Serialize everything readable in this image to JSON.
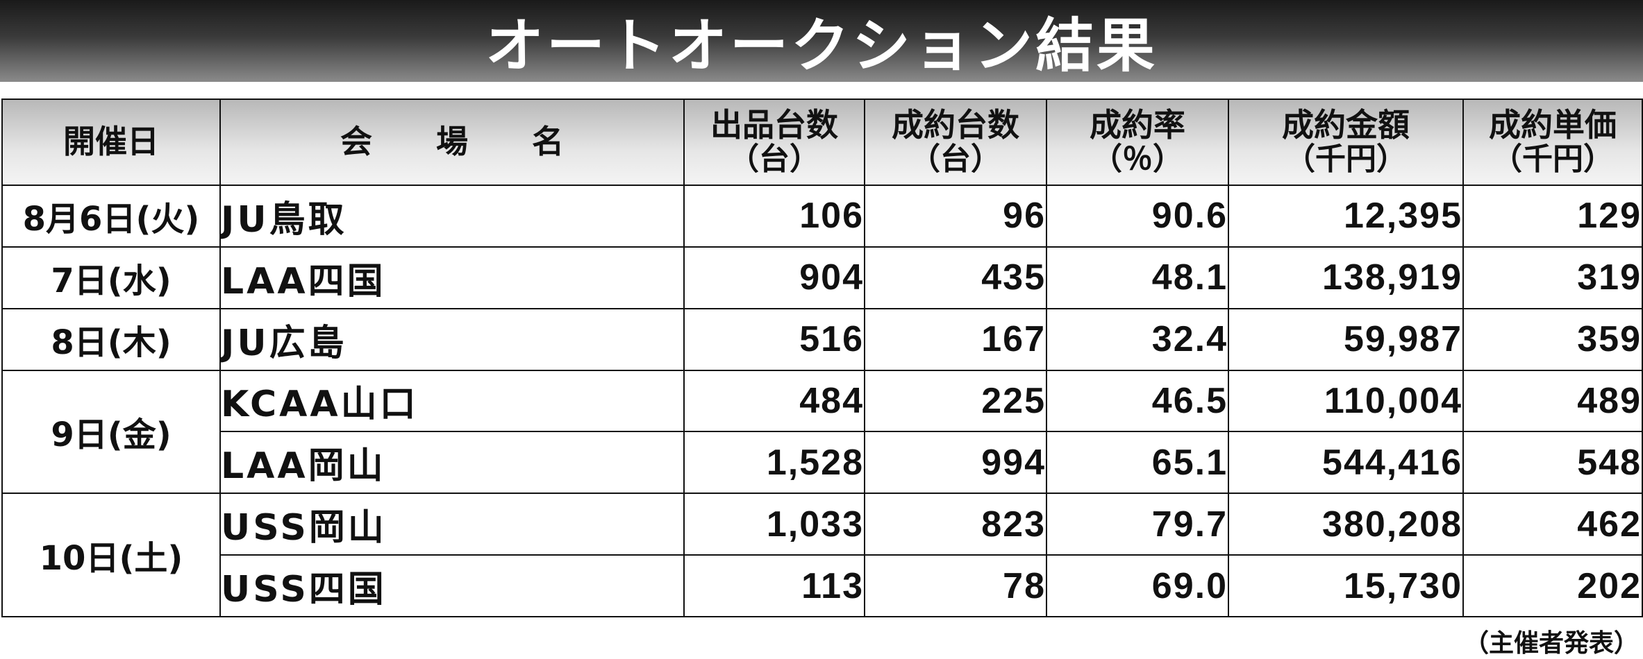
{
  "title": "オートオークション結果",
  "headers": {
    "date": "開催日",
    "venue": "会　　場　　名",
    "listed": {
      "l1": "出品台数",
      "l2": "（台）"
    },
    "sold": {
      "l1": "成約台数",
      "l2": "（台）"
    },
    "rate": {
      "l1": "成約率",
      "l2": "（％）"
    },
    "amount": {
      "l1": "成約金額",
      "l2": "（千円）"
    },
    "unit": {
      "l1": "成約単価",
      "l2": "（千円）"
    }
  },
  "rows": [
    {
      "date": "8月6日(火)",
      "venue": "JU鳥取",
      "listed": "106",
      "sold": "96",
      "rate": "90.6",
      "amount": "12,395",
      "unit": "129"
    },
    {
      "date": "7日(水)",
      "venue": "LAA四国",
      "listed": "904",
      "sold": "435",
      "rate": "48.1",
      "amount": "138,919",
      "unit": "319"
    },
    {
      "date": "8日(木)",
      "venue": "JU広島",
      "listed": "516",
      "sold": "167",
      "rate": "32.4",
      "amount": "59,987",
      "unit": "359"
    },
    {
      "date": "9日(金)",
      "venue": "KCAA山口",
      "listed": "484",
      "sold": "225",
      "rate": "46.5",
      "amount": "110,004",
      "unit": "489"
    },
    {
      "date": "",
      "venue": "LAA岡山",
      "listed": "1,528",
      "sold": "994",
      "rate": "65.1",
      "amount": "544,416",
      "unit": "548"
    },
    {
      "date": "10日(土)",
      "venue": "USS岡山",
      "listed": "1,033",
      "sold": "823",
      "rate": "79.7",
      "amount": "380,208",
      "unit": "462"
    },
    {
      "date": "",
      "venue": "USS四国",
      "listed": "113",
      "sold": "78",
      "rate": "69.0",
      "amount": "15,730",
      "unit": "202"
    }
  ],
  "footer_note": "（主催者発表）"
}
